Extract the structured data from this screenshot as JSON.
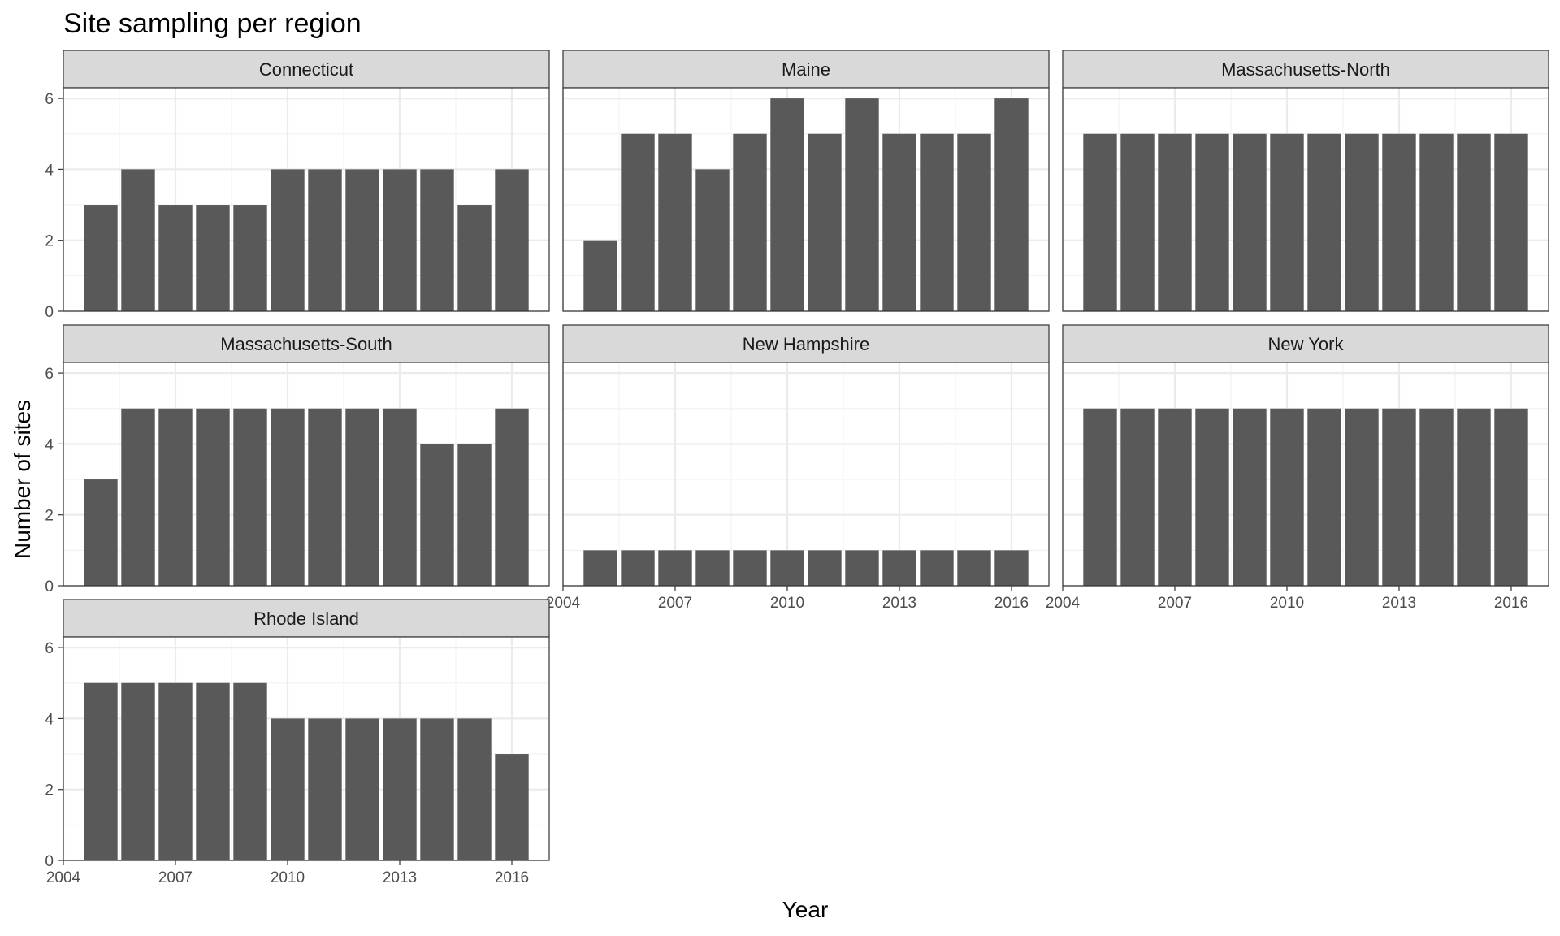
{
  "chart_data": {
    "type": "bar",
    "title": "Site sampling per region",
    "xlabel": "Year",
    "ylabel": "Number of sites",
    "layout": "facet-wrap 3 columns",
    "years": [
      2005,
      2006,
      2007,
      2008,
      2009,
      2010,
      2011,
      2012,
      2013,
      2014,
      2015,
      2016
    ],
    "xlim": [
      2004,
      2017
    ],
    "ylim": [
      0,
      6.3
    ],
    "x_ticks": [
      "2004",
      "2007",
      "2010",
      "2013",
      "2016"
    ],
    "y_ticks": [
      "0",
      "2",
      "4",
      "6"
    ],
    "grid": true,
    "bar_color": "#595959",
    "strip_color": "#d9d9d9",
    "panels": [
      {
        "name": "Connecticut",
        "values": [
          3,
          4,
          3,
          3,
          3,
          4,
          4,
          4,
          4,
          4,
          3,
          4
        ]
      },
      {
        "name": "Maine",
        "values": [
          2,
          5,
          5,
          4,
          5,
          6,
          5,
          6,
          5,
          5,
          5,
          6
        ]
      },
      {
        "name": "Massachusetts-North",
        "values": [
          5,
          5,
          5,
          5,
          5,
          5,
          5,
          5,
          5,
          5,
          5,
          5
        ]
      },
      {
        "name": "Massachusetts-South",
        "values": [
          3,
          5,
          5,
          5,
          5,
          5,
          5,
          5,
          5,
          4,
          4,
          5
        ]
      },
      {
        "name": "New Hampshire",
        "values": [
          1,
          1,
          1,
          1,
          1,
          1,
          1,
          1,
          1,
          1,
          1,
          1
        ]
      },
      {
        "name": "New York",
        "values": [
          5,
          5,
          5,
          5,
          5,
          5,
          5,
          5,
          5,
          5,
          5,
          5
        ]
      },
      {
        "name": "Rhode Island",
        "values": [
          5,
          5,
          5,
          5,
          5,
          4,
          4,
          4,
          4,
          4,
          4,
          3
        ]
      }
    ]
  }
}
